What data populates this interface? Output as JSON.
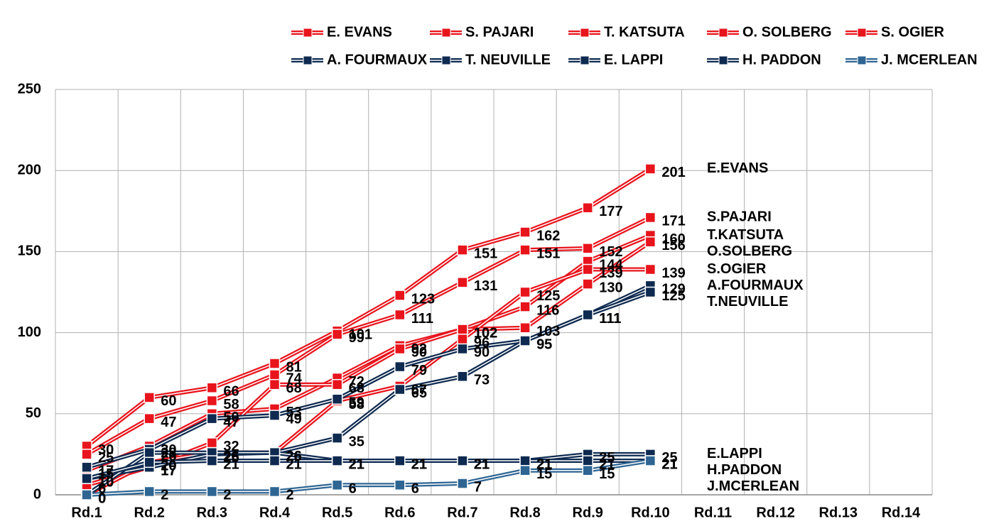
{
  "chart_data": {
    "type": "line",
    "categories": [
      "Rd.1",
      "Rd.2",
      "Rd.3",
      "Rd.4",
      "Rd.5",
      "Rd.6",
      "Rd.7",
      "Rd.8",
      "Rd.9",
      "Rd.10",
      "Rd.11",
      "Rd.12",
      "Rd.13",
      "Rd.14"
    ],
    "ylim": [
      0,
      250
    ],
    "yticks": [
      0,
      50,
      100,
      150,
      200,
      250
    ],
    "grid": true,
    "series": [
      {
        "name": "E. EVANS",
        "color": "#e8141c",
        "values": [
          30,
          60,
          66,
          81,
          101,
          123,
          151,
          162,
          177,
          201,
          null,
          null,
          null,
          null
        ]
      },
      {
        "name": "S. PAJARI",
        "color": "#e8141c",
        "values": [
          25,
          47,
          58,
          74,
          99,
          111,
          131,
          151,
          152,
          171,
          null,
          null,
          null,
          null
        ]
      },
      {
        "name": "T. KATSUTA",
        "color": "#e8141c",
        "values": [
          15,
          30,
          50,
          53,
          72,
          92,
          102,
          116,
          144,
          160,
          null,
          null,
          null,
          null
        ]
      },
      {
        "name": "O. SOLBERG",
        "color": "#e8141c",
        "values": [
          6,
          17,
          32,
          68,
          68,
          90,
          102,
          103,
          130,
          156,
          null,
          null,
          null,
          null
        ]
      },
      {
        "name": "S. OGIER",
        "color": "#e8141c",
        "values": [
          0,
          20,
          26,
          26,
          58,
          67,
          96,
          125,
          139,
          139,
          null,
          null,
          null,
          null
        ]
      },
      {
        "name": "A. FOURMAUX",
        "color": "#0e2a50",
        "values": [
          17,
          28,
          47,
          49,
          59,
          79,
          90,
          95,
          111,
          129,
          null,
          null,
          null,
          null
        ]
      },
      {
        "name": "T. NEUVILLE",
        "color": "#0e2a50",
        "values": [
          10,
          17,
          25,
          26,
          35,
          65,
          73,
          95,
          111,
          125,
          null,
          null,
          null,
          null
        ]
      },
      {
        "name": "E. LAPPI",
        "color": "#0e2a50",
        "values": [
          0,
          26,
          26,
          26,
          21,
          21,
          21,
          21,
          25,
          25,
          null,
          null,
          null,
          null
        ]
      },
      {
        "name": "H. PADDON",
        "color": "#0e2a50",
        "values": [
          10,
          20,
          21,
          21,
          21,
          21,
          21,
          21,
          21,
          21,
          null,
          null,
          null,
          null
        ]
      },
      {
        "name": "J. MCERLEAN",
        "color": "#2e6593",
        "values": [
          0,
          2,
          2,
          2,
          6,
          6,
          7,
          15,
          15,
          21,
          null,
          null,
          null,
          null
        ]
      }
    ],
    "end_labels": [
      "E.EVANS",
      "S.PAJARI",
      "T.KATSUTA",
      "O.SOLBERG",
      "S.OGIER",
      "A.FOURMAUX",
      "T.NEUVILLE",
      "E.LAPPI",
      "H.PADDON",
      "J.MCERLEAN"
    ]
  }
}
